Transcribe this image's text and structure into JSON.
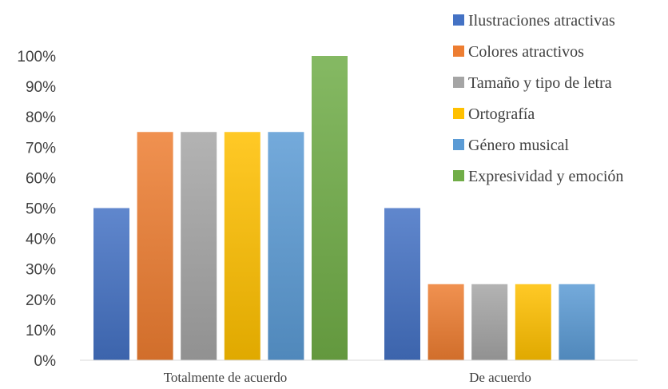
{
  "chart_data": {
    "type": "bar",
    "title": "",
    "xlabel": "",
    "ylabel": "",
    "categories": [
      "Totalmente de acuerdo",
      "De acuerdo"
    ],
    "y_ticks": [
      "0%",
      "10%",
      "20%",
      "30%",
      "40%",
      "50%",
      "60%",
      "70%",
      "80%",
      "90%",
      "100%"
    ],
    "ylim": [
      0,
      100
    ],
    "grid": false,
    "legend_position": "top-right",
    "series": [
      {
        "name": "Ilustraciones atractivas",
        "color": "#4472C4",
        "values": [
          50,
          50
        ]
      },
      {
        "name": "Colores atractivos",
        "color": "#ED7D31",
        "values": [
          75,
          25
        ]
      },
      {
        "name": "Tamaño y tipo de letra",
        "color": "#A5A5A5",
        "values": [
          75,
          25
        ]
      },
      {
        "name": "Ortografía",
        "color": "#FFC000",
        "values": [
          75,
          25
        ]
      },
      {
        "name": "Género musical",
        "color": "#5B9BD5",
        "values": [
          75,
          25
        ]
      },
      {
        "name": "Expresividad y emoción",
        "color": "#70AD47",
        "values": [
          100,
          null
        ]
      }
    ]
  }
}
